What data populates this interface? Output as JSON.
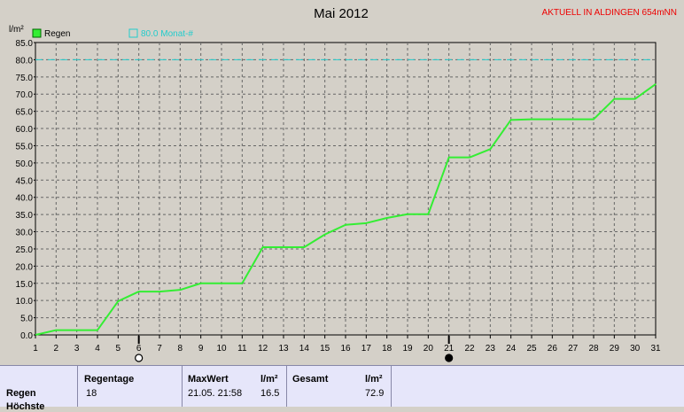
{
  "station": "AKTUELL IN ALDINGEN 654mNN",
  "colors": {
    "rain": "#33ee33",
    "monthly": "#22cccc",
    "station": "#ee0000",
    "grid": "#666666"
  },
  "chart_data": {
    "type": "line",
    "title": "Mai 2012",
    "ylabel": "l/m²",
    "ylim": [
      0,
      85
    ],
    "xlim": [
      1,
      31
    ],
    "grid": true,
    "legend_placement": "top-left",
    "yticks": [
      "0.0",
      "5.0",
      "10.0",
      "15.0",
      "20.0",
      "25.0",
      "30.0",
      "35.0",
      "40.0",
      "45.0",
      "50.0",
      "55.0",
      "60.0",
      "65.0",
      "70.0",
      "75.0",
      "80.0",
      "85.0"
    ],
    "xticks": [
      "1",
      "2",
      "3",
      "4",
      "5",
      "6",
      "7",
      "8",
      "9",
      "10",
      "11",
      "12",
      "13",
      "14",
      "15",
      "16",
      "17",
      "18",
      "19",
      "20",
      "21",
      "22",
      "23",
      "24",
      "25",
      "26",
      "27",
      "28",
      "29",
      "30",
      "31"
    ],
    "series": [
      {
        "name": "Regen",
        "x": [
          1,
          2,
          3,
          4,
          5,
          6,
          7,
          8,
          9,
          10,
          11,
          12,
          13,
          14,
          15,
          16,
          17,
          18,
          19,
          20,
          21,
          22,
          23,
          24,
          25,
          26,
          27,
          28,
          29,
          30,
          31
        ],
        "y": [
          0.0,
          1.4,
          1.4,
          1.4,
          9.8,
          12.6,
          12.6,
          13.1,
          15.0,
          15.0,
          15.0,
          25.5,
          25.5,
          25.5,
          29.2,
          32.0,
          32.5,
          34.0,
          35.1,
          35.1,
          51.6,
          51.6,
          54.0,
          62.5,
          62.7,
          62.7,
          62.7,
          62.7,
          68.6,
          68.6,
          72.9
        ]
      },
      {
        "name": "80.0 Monat-#",
        "reference_y": 80.0
      }
    ],
    "moon_markers": [
      {
        "day": 6,
        "phase": "full-moon-icon"
      },
      {
        "day": 21,
        "phase": "new-moon-icon"
      }
    ]
  },
  "footer": {
    "row_label": "Regen",
    "row_label2": "Höchste",
    "regentage_header": "Regentage",
    "regentage_value": "18",
    "maxwert_header": "MaxWert",
    "maxwert_unit": "l/m²",
    "maxwert_date": "21.05.  21:58",
    "maxwert_value": "16.5",
    "gesamt_header": "Gesamt",
    "gesamt_unit": "l/m²",
    "gesamt_value": "72.9"
  }
}
